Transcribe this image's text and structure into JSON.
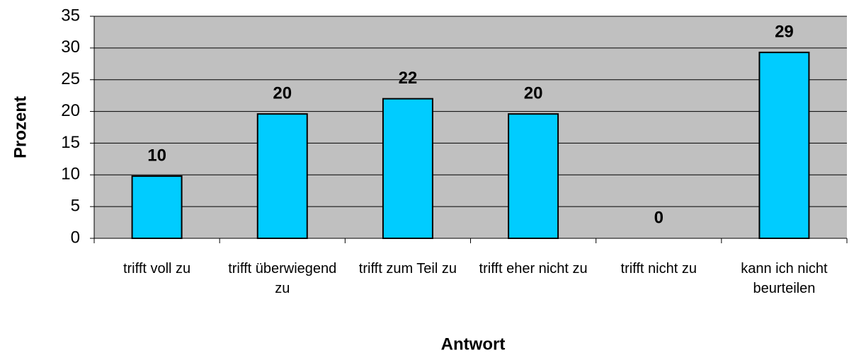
{
  "chart_data": {
    "type": "bar",
    "x_label": "Antwort",
    "y_label": "Prozent",
    "categories": [
      "trifft voll zu",
      "trifft überwiegend zu",
      "trifft zum Teil zu",
      "trifft eher nicht zu",
      "trifft nicht zu",
      "kann ich nicht beurteilen"
    ],
    "values": [
      9.8,
      19.6,
      22,
      19.6,
      0,
      29.3
    ],
    "value_labels": [
      "10",
      "20",
      "22",
      "20",
      "0",
      "29"
    ],
    "color": "#00ccff",
    "ylim": [
      0,
      35
    ],
    "yticks": [
      0,
      5,
      10,
      15,
      20,
      25,
      30,
      35
    ],
    "grid": true
  }
}
